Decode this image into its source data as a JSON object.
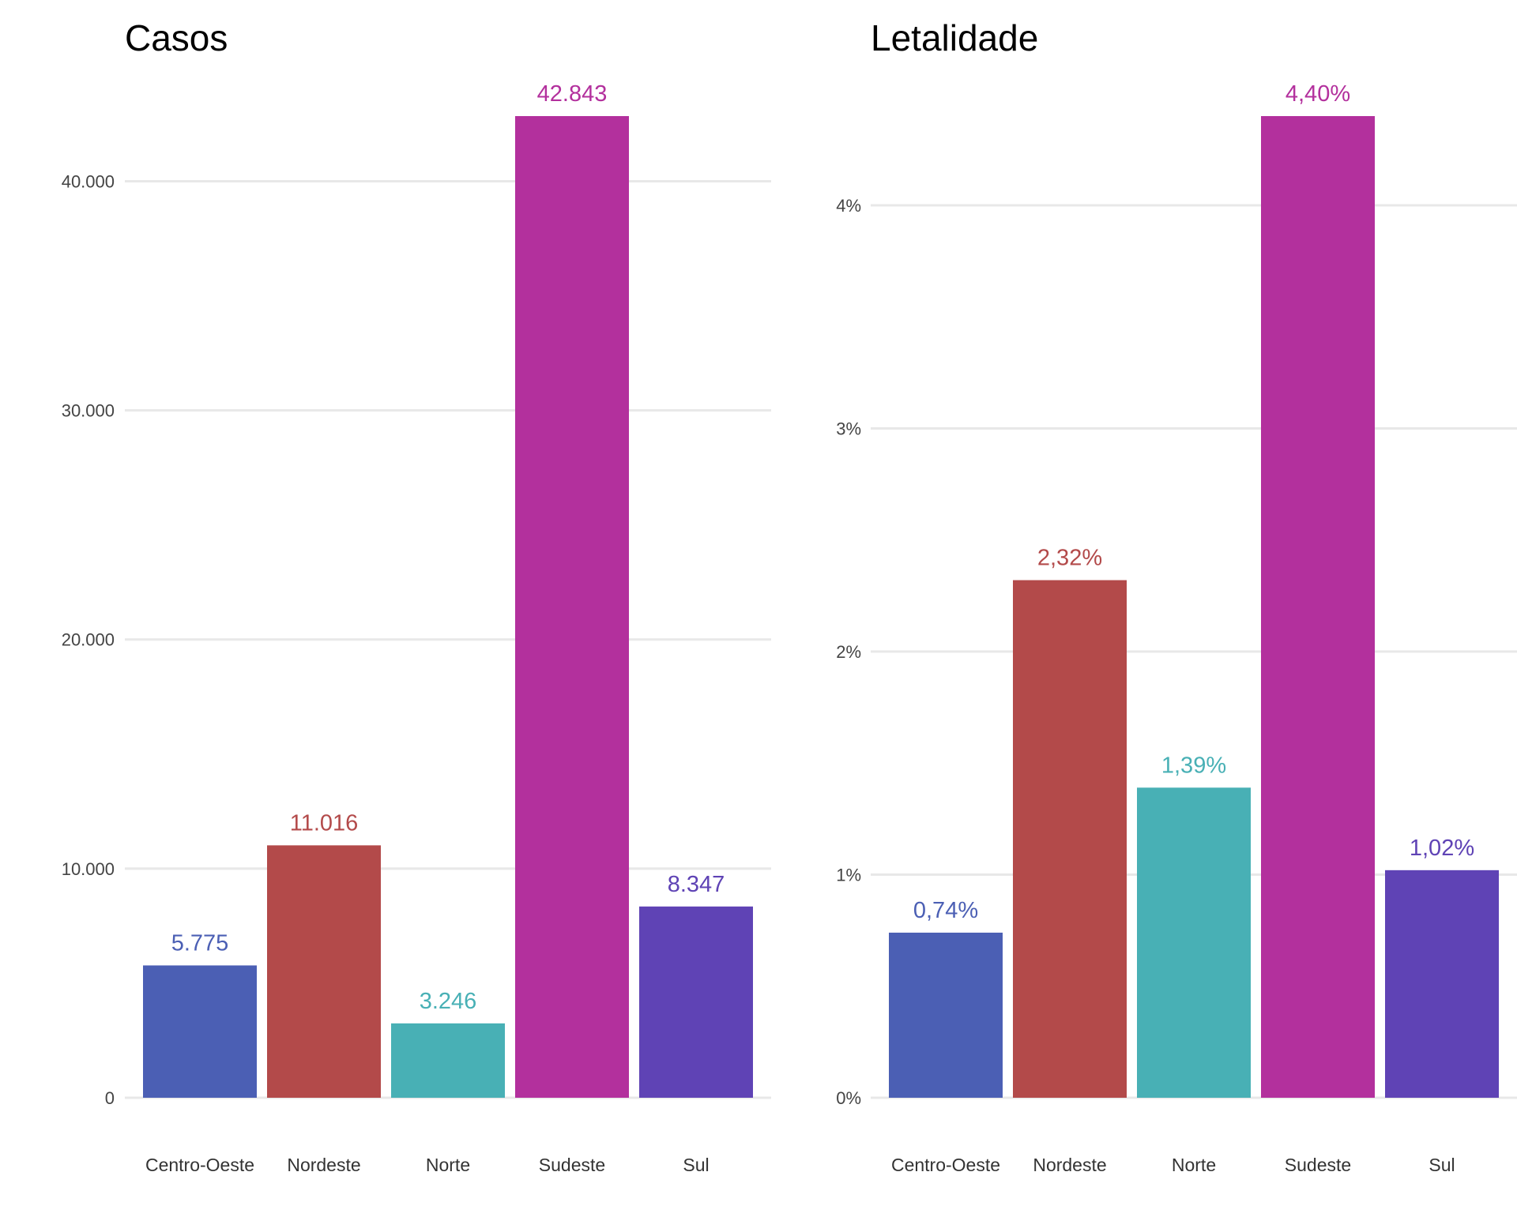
{
  "chart_data": [
    {
      "type": "bar",
      "title": "Casos",
      "xlabel": "",
      "ylabel": "",
      "categories": [
        "Centro-Oeste",
        "Nordeste",
        "Norte",
        "Sudeste",
        "Sul"
      ],
      "values": [
        5775,
        11016,
        3246,
        42843,
        8347
      ],
      "value_labels": [
        "5.775",
        "11.016",
        "3.246",
        "42.843",
        "8.347"
      ],
      "colors": [
        "#4b5fb4",
        "#b34a4a",
        "#48b0b5",
        "#b3309d",
        "#5f43b5"
      ],
      "ylim": [
        0,
        42843
      ],
      "yticks": [
        0,
        10000,
        20000,
        30000,
        40000
      ],
      "ytick_labels": [
        "0",
        "10.000",
        "20.000",
        "30.000",
        "40.000"
      ],
      "grid": true,
      "legend": "none"
    },
    {
      "type": "bar",
      "title": "Letalidade",
      "xlabel": "",
      "ylabel": "",
      "categories": [
        "Centro-Oeste",
        "Nordeste",
        "Norte",
        "Sudeste",
        "Sul"
      ],
      "values": [
        0.74,
        2.32,
        1.39,
        4.4,
        1.02
      ],
      "value_labels": [
        "0,74%",
        "2,32%",
        "1,39%",
        "4,40%",
        "1,02%"
      ],
      "colors": [
        "#4b5fb4",
        "#b34a4a",
        "#48b0b5",
        "#b3309d",
        "#5f43b5"
      ],
      "ylim": [
        0,
        4.4
      ],
      "yticks": [
        0,
        1,
        2,
        3,
        4
      ],
      "ytick_labels": [
        "0%",
        "1%",
        "2%",
        "3%",
        "4%"
      ],
      "grid": true,
      "legend": "none"
    }
  ]
}
